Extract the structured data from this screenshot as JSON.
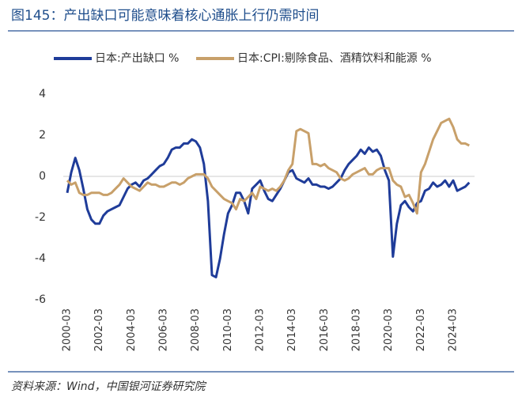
{
  "chart_data": {
    "type": "line",
    "title": "图145：产出缺口可能意味着核心通胀上行仍需时间",
    "source": "资料来源：Wind，中国银河证券研究院",
    "categories": [
      "2000-03",
      null,
      null,
      null,
      null,
      null,
      null,
      null,
      "2002-03",
      null,
      null,
      null,
      null,
      null,
      null,
      null,
      "2004-03",
      null,
      null,
      null,
      null,
      null,
      null,
      null,
      "2006-03",
      null,
      null,
      null,
      null,
      null,
      null,
      null,
      "2008-03",
      null,
      null,
      null,
      null,
      null,
      null,
      null,
      "2010-03",
      null,
      null,
      null,
      null,
      null,
      null,
      null,
      "2012-03",
      null,
      null,
      null,
      null,
      null,
      null,
      null,
      "2014-03",
      null,
      null,
      null,
      null,
      null,
      null,
      null,
      "2016-03",
      null,
      null,
      null,
      null,
      null,
      null,
      null,
      "2018-03",
      null,
      null,
      null,
      null,
      null,
      null,
      null,
      "2020-03",
      null,
      null,
      null,
      null,
      null,
      null,
      null,
      "2022-03",
      null,
      null,
      null,
      null,
      null,
      null,
      null,
      "2024-03",
      null,
      null,
      null,
      null
    ],
    "series": [
      {
        "name": "日本:产出缺口 %",
        "color": "#1f3c99",
        "values": [
          -0.8,
          0.2,
          0.9,
          0.3,
          -0.6,
          -1.6,
          -2.1,
          -2.3,
          -2.3,
          -1.9,
          -1.7,
          -1.6,
          -1.5,
          -1.4,
          -1.0,
          -0.6,
          -0.4,
          -0.3,
          -0.5,
          -0.2,
          -0.1,
          0.1,
          0.3,
          0.5,
          0.6,
          0.9,
          1.3,
          1.4,
          1.4,
          1.6,
          1.6,
          1.8,
          1.7,
          1.4,
          0.6,
          -1.2,
          -4.8,
          -4.9,
          -4.0,
          -2.8,
          -1.8,
          -1.4,
          -0.8,
          -0.8,
          -1.2,
          -1.8,
          -0.6,
          -0.4,
          -0.2,
          -0.7,
          -1.1,
          -1.2,
          -0.9,
          -0.6,
          -0.2,
          0.2,
          0.3,
          -0.1,
          -0.2,
          -0.3,
          -0.1,
          -0.4,
          -0.4,
          -0.5,
          -0.5,
          -0.6,
          -0.5,
          -0.3,
          -0.1,
          0.3,
          0.6,
          0.8,
          1.0,
          1.3,
          1.1,
          1.4,
          1.2,
          1.3,
          1.0,
          0.3,
          -0.2,
          -3.9,
          -2.3,
          -1.4,
          -1.2,
          -1.5,
          -1.7,
          -1.3,
          -1.2,
          -0.7,
          -0.6,
          -0.3,
          -0.5,
          -0.4,
          -0.2,
          -0.5,
          -0.2,
          -0.7,
          -0.6,
          -0.5,
          -0.3
        ]
      },
      {
        "name": "日本:CPI:剔除食品、酒精饮料和能源 %",
        "color": "#c8a06a",
        "values": [
          -0.2,
          -0.4,
          -0.3,
          -0.8,
          -0.9,
          -0.9,
          -0.8,
          -0.8,
          -0.8,
          -0.9,
          -0.9,
          -0.8,
          -0.6,
          -0.4,
          -0.1,
          -0.3,
          -0.5,
          -0.6,
          -0.7,
          -0.5,
          -0.3,
          -0.4,
          -0.4,
          -0.5,
          -0.5,
          -0.4,
          -0.3,
          -0.3,
          -0.4,
          -0.3,
          -0.1,
          0.0,
          0.1,
          0.1,
          0.1,
          -0.1,
          -0.5,
          -0.7,
          -0.9,
          -1.1,
          -1.2,
          -1.3,
          -1.6,
          -1.1,
          -1.2,
          -1.0,
          -0.8,
          -1.1,
          -0.5,
          -0.6,
          -0.7,
          -0.6,
          -0.7,
          -0.5,
          -0.2,
          0.3,
          0.6,
          2.2,
          2.3,
          2.2,
          2.1,
          0.6,
          0.6,
          0.5,
          0.6,
          0.4,
          0.3,
          0.2,
          -0.1,
          -0.2,
          -0.1,
          0.1,
          0.2,
          0.3,
          0.4,
          0.1,
          0.1,
          0.3,
          0.4,
          0.4,
          0.4,
          -0.2,
          -0.4,
          -0.5,
          -1.0,
          -0.9,
          -1.3,
          -1.8,
          0.2,
          0.6,
          1.2,
          1.8,
          2.2,
          2.6,
          2.7,
          2.8,
          2.4,
          1.8,
          1.6,
          1.6,
          1.5
        ]
      }
    ],
    "ylim": [
      -6,
      4
    ],
    "yticks": [
      -6,
      -4,
      -2,
      0,
      2,
      4
    ]
  }
}
